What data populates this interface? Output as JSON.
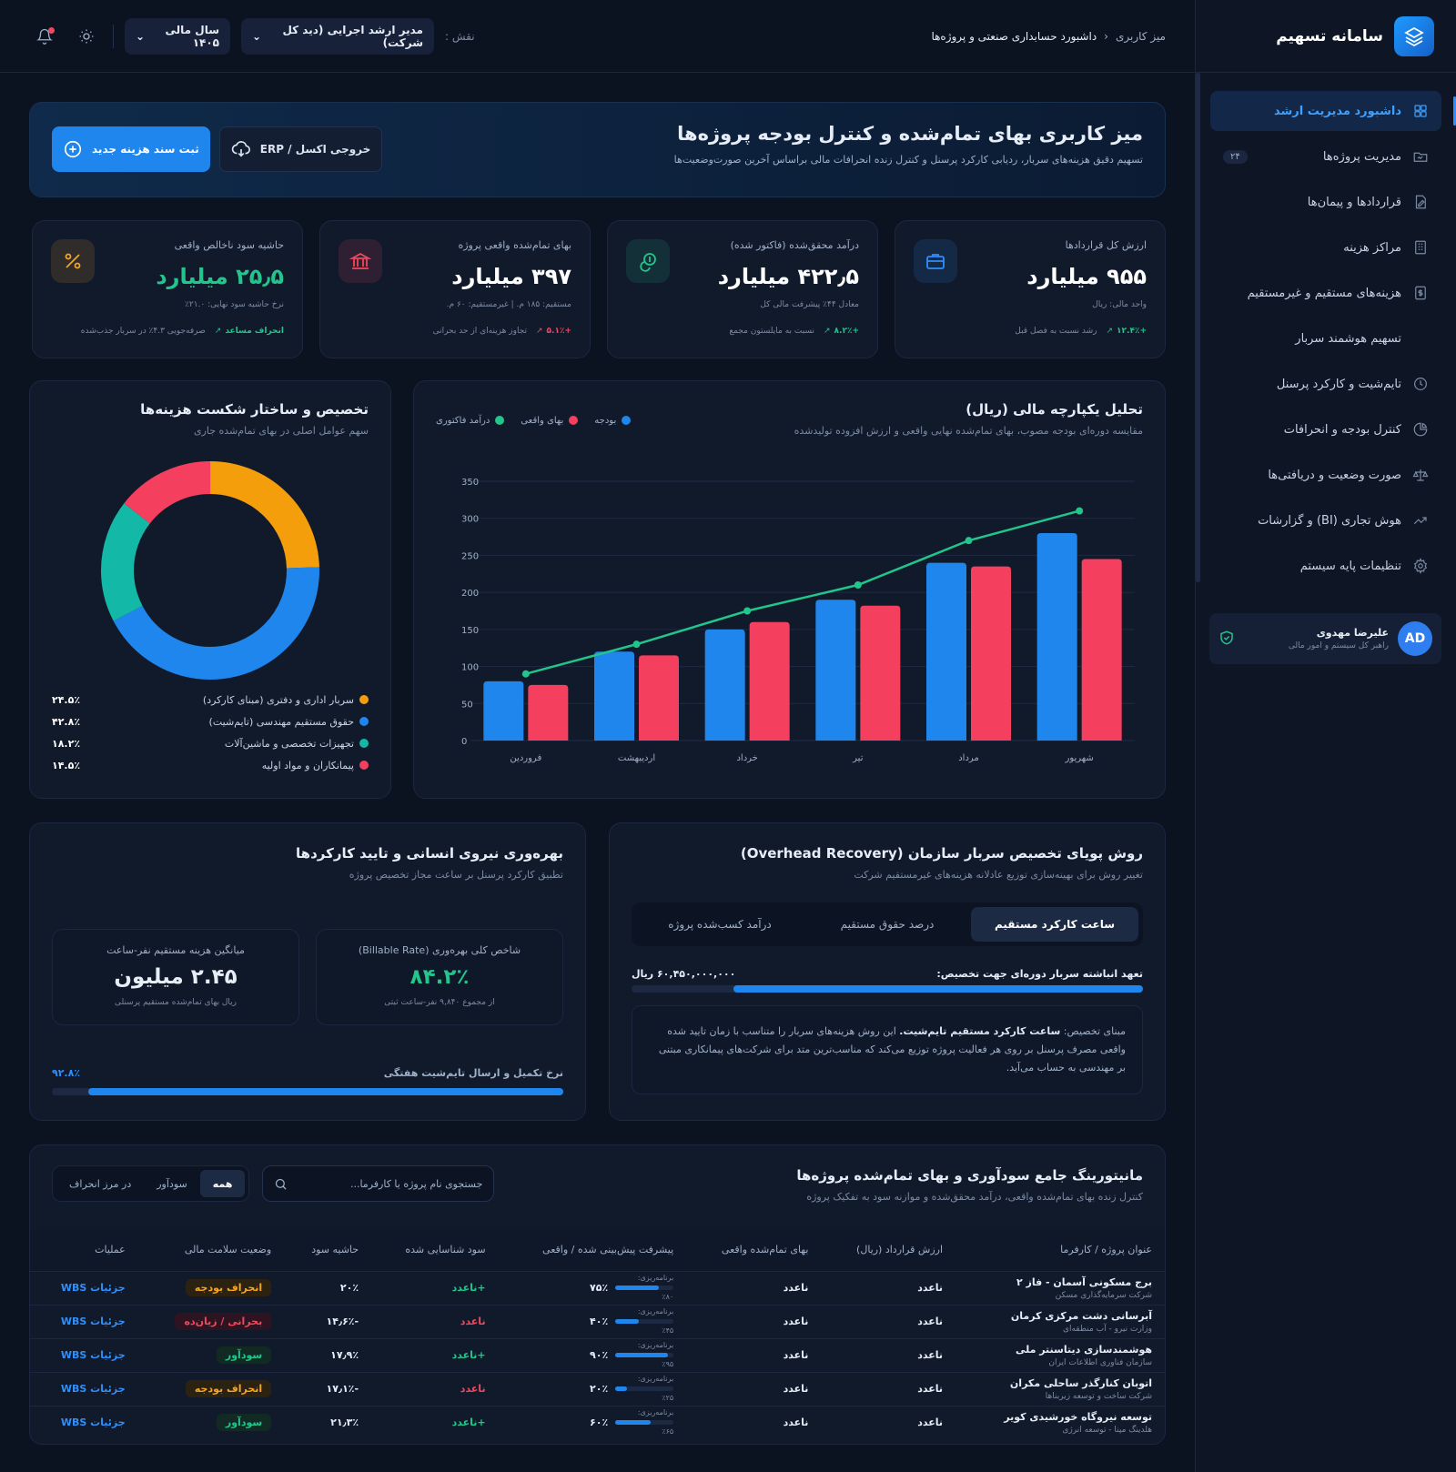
{
  "sidebar": {
    "brand": "سامانه تسهیم",
    "items": [
      {
        "label": "داشبورد مدیریت ارشد",
        "icon": "grid-icon",
        "active": true
      },
      {
        "label": "مدیریت پروژه‌ها",
        "icon": "folder-icon",
        "badge": "۲۴"
      },
      {
        "label": "قراردادها و پیمان‌ها",
        "icon": "contract-edit-icon"
      },
      {
        "label": "مراکز هزینه",
        "icon": "building-icon"
      },
      {
        "label": "هزینه‌های مستقیم و غیرمستقیم",
        "icon": "dollar-doc-icon"
      },
      {
        "label": "تسهیم هوشمند سربار",
        "icon": ""
      },
      {
        "label": "تایم‌شیت و کارکرد پرسنل",
        "icon": "clock-icon"
      },
      {
        "label": "کنترل بودجه و انحرافات",
        "icon": "pie-icon"
      },
      {
        "label": "صورت وضعیت و دریافتی‌ها",
        "icon": "scale-icon"
      },
      {
        "label": "هوش تجاری (BI) و گزارشات",
        "icon": "trend-icon"
      },
      {
        "label": "تنظیمات پایه سیستم",
        "icon": "gear-icon"
      }
    ],
    "user": {
      "initials": "AD",
      "name": "علیرضا مهدوی",
      "role": "راهبر کل سیستم و امور مالی"
    }
  },
  "header": {
    "breadcrumb_root": "میز کاربری",
    "breadcrumb_current": "داشبورد حسابداری صنعتی و پروژه‌ها",
    "role_label": "نقش :",
    "role_value": "مدیر ارشد اجرایی (دید کل شرکت)",
    "year_value": "سال مالی ۱۴۰۵"
  },
  "hero": {
    "title": "میز کاربری بهای تمام‌شده و کنترل بودجه پروژه‌ها",
    "subtitle": "تسهیم دقیق هزینه‌های سربار، ردیابی کارکرد پرسنل و کنترل زنده انحرافات مالی براساس آخرین صورت‌وضعیت‌ها",
    "primary_btn": "ثبت سند هزینه جدید",
    "export_btn": "خروجی اکسل / ERP"
  },
  "kpis": [
    {
      "title": "ارزش کل قراردادها",
      "value": "۹۵۵ میلیارد",
      "sub": "واحد مالی: ریال",
      "delta": "+۱۲.۴٪",
      "delta_note": "رشد نسبت به فصل قبل",
      "tone": "pos",
      "icon": "briefcase-icon",
      "color": "#2f8ffb"
    },
    {
      "title": "درآمد محقق‌شده (فاکتور شده)",
      "value": "۴۲۲٫۵ میلیارد",
      "sub": "معادل ۴۴٪ پیشرفت مالی کل",
      "delta": "+۸.۲٪",
      "delta_note": "نسبت به مایلستون مجمع",
      "tone": "pos",
      "icon": "coins-icon",
      "color": "#22c58b"
    },
    {
      "title": "بهای تمام‌شده واقعی پروژه",
      "value": "۳۹۷ میلیارد",
      "sub": "مستقیم: ۱۸۵ م. | غیرمستقیم: ۶۰ م.",
      "delta": "+۵.۱٪",
      "delta_note": "تجاوز هزینه‌ای از حد بحرانی",
      "tone": "neg",
      "icon": "bank-icon",
      "color": "#f1485f"
    },
    {
      "title": "حاشیه سود ناخالص واقعی",
      "value": "۲۵٫۵ میلیارد",
      "sub": "نرخ حاشیه سود نهایی: ۲۱.۰٪",
      "delta": "انحراف مساعد",
      "delta_note": "صرفه‌جویی ۴.۳٪ در سربار جذب‌شده",
      "tone": "pos",
      "icon": "percent-icon",
      "color": "#f5a524"
    }
  ],
  "finance_chart": {
    "title": "تحلیل یکپارچه مالی (ریال)",
    "desc": "مقایسه دوره‌ای بودجه مصوب، بهای تمام‌شده نهایی واقعی و ارزش افزوده تولیدشده"
  },
  "donut": {
    "title": "تخصیص و ساختار شکست هزینه‌ها",
    "desc": "سهم عوامل اصلی در بهای تمام‌شده جاری",
    "items": [
      {
        "label": "سربار اداری و دفتری (مبنای کارکرد)",
        "pct": "۲۴.۵٪",
        "value": 24.5,
        "color": "#f59e0b"
      },
      {
        "label": "حقوق مستقیم مهندسی (تایم‌شیت)",
        "pct": "۴۲.۸٪",
        "value": 42.8,
        "color": "#1e86ec"
      },
      {
        "label": "تجهیزات تخصصی و ماشین‌آلات",
        "pct": "۱۸.۲٪",
        "value": 18.2,
        "color": "#14b8a6"
      },
      {
        "label": "پیمانکاران و مواد اولیه",
        "pct": "۱۴.۵٪",
        "value": 14.5,
        "color": "#f43f5e"
      }
    ]
  },
  "chart_data": {
    "type": "bar",
    "categories": [
      "فروردین",
      "اردیبهشت",
      "خرداد",
      "تیر",
      "مرداد",
      "شهریور"
    ],
    "series": [
      {
        "name": "بودجه",
        "type": "bar",
        "color": "#1e86ec",
        "values": [
          80,
          120,
          150,
          190,
          240,
          280
        ]
      },
      {
        "name": "بهای واقعی",
        "type": "bar",
        "color": "#f43f5e",
        "values": [
          75,
          115,
          160,
          182,
          235,
          245
        ]
      },
      {
        "name": "درآمد فاکتوری",
        "type": "line",
        "color": "#22c58b",
        "values": [
          90,
          130,
          175,
          210,
          270,
          310
        ]
      }
    ],
    "ylim": [
      0,
      350
    ],
    "yticks": [
      0,
      50,
      100,
      150,
      200,
      250,
      300,
      350
    ],
    "grid": true,
    "legend": "top-left"
  },
  "overhead": {
    "title": "روش پویای تخصیص سربار سازمان (Overhead Recovery)",
    "desc": "تغییر روش برای بهینه‌سازی توزیع عادلانه هزینه‌های غیرمستقیم شرکت",
    "tabs": [
      "ساعت کارکرد مستقیم",
      "درصد حقوق مستقیم",
      "درآمد کسب‌شده پروژه"
    ],
    "commit_label": "تعهد انباشته سربار دوره‌ای جهت تخصیص:",
    "commit_value": "۶۰,۴۵۰,۰۰۰,۰۰۰ ریال",
    "commit_pct": 80,
    "note_prefix": "مبنای تخصیص:",
    "note_bold": "ساعت کارکرد مستقیم تایم‌شیت.",
    "note_rest": "این روش هزینه‌های سربار را متناسب با زمان تایید شده واقعی مصرف پرسنل بر روی هر فعالیت پروژه توزیع می‌کند که مناسب‌ترین متد برای شرکت‌های پیمانکاری مبتنی بر مهندسی به حساب می‌آید."
  },
  "productivity": {
    "title": "بهره‌وری نیروی انسانی و تایید کارکردها",
    "desc": "تطبیق کارکرد پرسنل بر ساعت مجاز تخصیص پروژه",
    "stat1": {
      "title": "شاخص کلی بهره‌وری (Billable Rate)",
      "value": "۸۴.۲٪",
      "sub": "از مجموع ۹,۸۴۰ نفر-ساعت ثبتی"
    },
    "stat2": {
      "title": "میانگین هزینه مستقیم نفر-ساعت",
      "value": "۲.۴۵ میلیون",
      "sub": "ریال بهای تمام‌شده مستقیم پرسنلی"
    },
    "timesheet_label": "نرخ تکمیل و ارسال تایم‌شیت هفتگی",
    "timesheet_value": "۹۲.۸٪",
    "timesheet_pct": 92.8
  },
  "monitor": {
    "title": "مانیتورینگ جامع سودآوری و بهای تمام‌شده پروژه‌ها",
    "desc": "کنترل زنده بهای تمام‌شده واقعی، درآمد محقق‌شده و موازنه سود به تفکیک پروژه",
    "search_placeholder": "جستجوی نام پروژه یا کارفرما...",
    "filters": [
      "همه",
      "سودآور",
      "در مرز انحراف"
    ],
    "columns": [
      "عنوان پروژه / کارفرما",
      "ارزش قرارداد (ریال)",
      "بهای تمام‌شده واقعی",
      "پیشرفت پیش‌بینی شده / واقعی",
      "سود شناسایی شده",
      "حاشیه سود",
      "وضعیت سلامت مالی",
      "عملیات"
    ],
    "plan_label": "برنامه‌ریزی:",
    "rows": [
      {
        "name": "برج مسکونی آسمان - فاز ۲",
        "client": "شرکت سرمایه‌گذاری مسکن",
        "contract": "ناعدد",
        "cost": "ناعدد",
        "plan": "٪۸۰",
        "actual": "۷۵٪",
        "actual_pct": 75,
        "profit": "+ناعدد",
        "profit_tone": "pos",
        "margin": "۲۰٪",
        "status": "انحراف بودجه",
        "status_tone": "warn",
        "action": "جزئیات WBS"
      },
      {
        "name": "آبرسانی دشت مرکزی کرمان",
        "client": "وزارت نیرو - آب منطقه‌ای",
        "contract": "ناعدد",
        "cost": "ناعدد",
        "plan": "٪۴۵",
        "actual": "۴۰٪",
        "actual_pct": 40,
        "profit": "ناعدد",
        "profit_tone": "neg",
        "margin": "-۱۴٫۶٪",
        "status": "بحرانی / زیان‌ده",
        "status_tone": "crit",
        "action": "جزئیات WBS"
      },
      {
        "name": "هوشمندسازی دیتاسنتر ملی",
        "client": "سازمان فناوری اطلاعات ایران",
        "contract": "ناعدد",
        "cost": "ناعدد",
        "plan": "٪۹۵",
        "actual": "۹۰٪",
        "actual_pct": 90,
        "profit": "+ناعدد",
        "profit_tone": "pos",
        "margin": "۱۷٫۹٪",
        "status": "سودآور",
        "status_tone": "ok",
        "action": "جزئیات WBS"
      },
      {
        "name": "اتوبان کنارگذر ساحلی مکران",
        "client": "شرکت ساخت و توسعه زیربناها",
        "contract": "ناعدد",
        "cost": "ناعدد",
        "plan": "٪۲۵",
        "actual": "۲۰٪",
        "actual_pct": 20,
        "profit": "ناعدد",
        "profit_tone": "neg",
        "margin": "-۱۷٫۱٪",
        "status": "انحراف بودجه",
        "status_tone": "warn",
        "action": "جزئیات WBS"
      },
      {
        "name": "توسعه نیروگاه خورشیدی کویر",
        "client": "هلدینگ مپنا - توسعه انرژی",
        "contract": "ناعدد",
        "cost": "ناعدد",
        "plan": "٪۶۵",
        "actual": "۶۰٪",
        "actual_pct": 60,
        "profit": "+ناعدد",
        "profit_tone": "pos",
        "margin": "۲۱٫۳٪",
        "status": "سودآور",
        "status_tone": "ok",
        "action": "جزئیات WBS"
      }
    ]
  }
}
